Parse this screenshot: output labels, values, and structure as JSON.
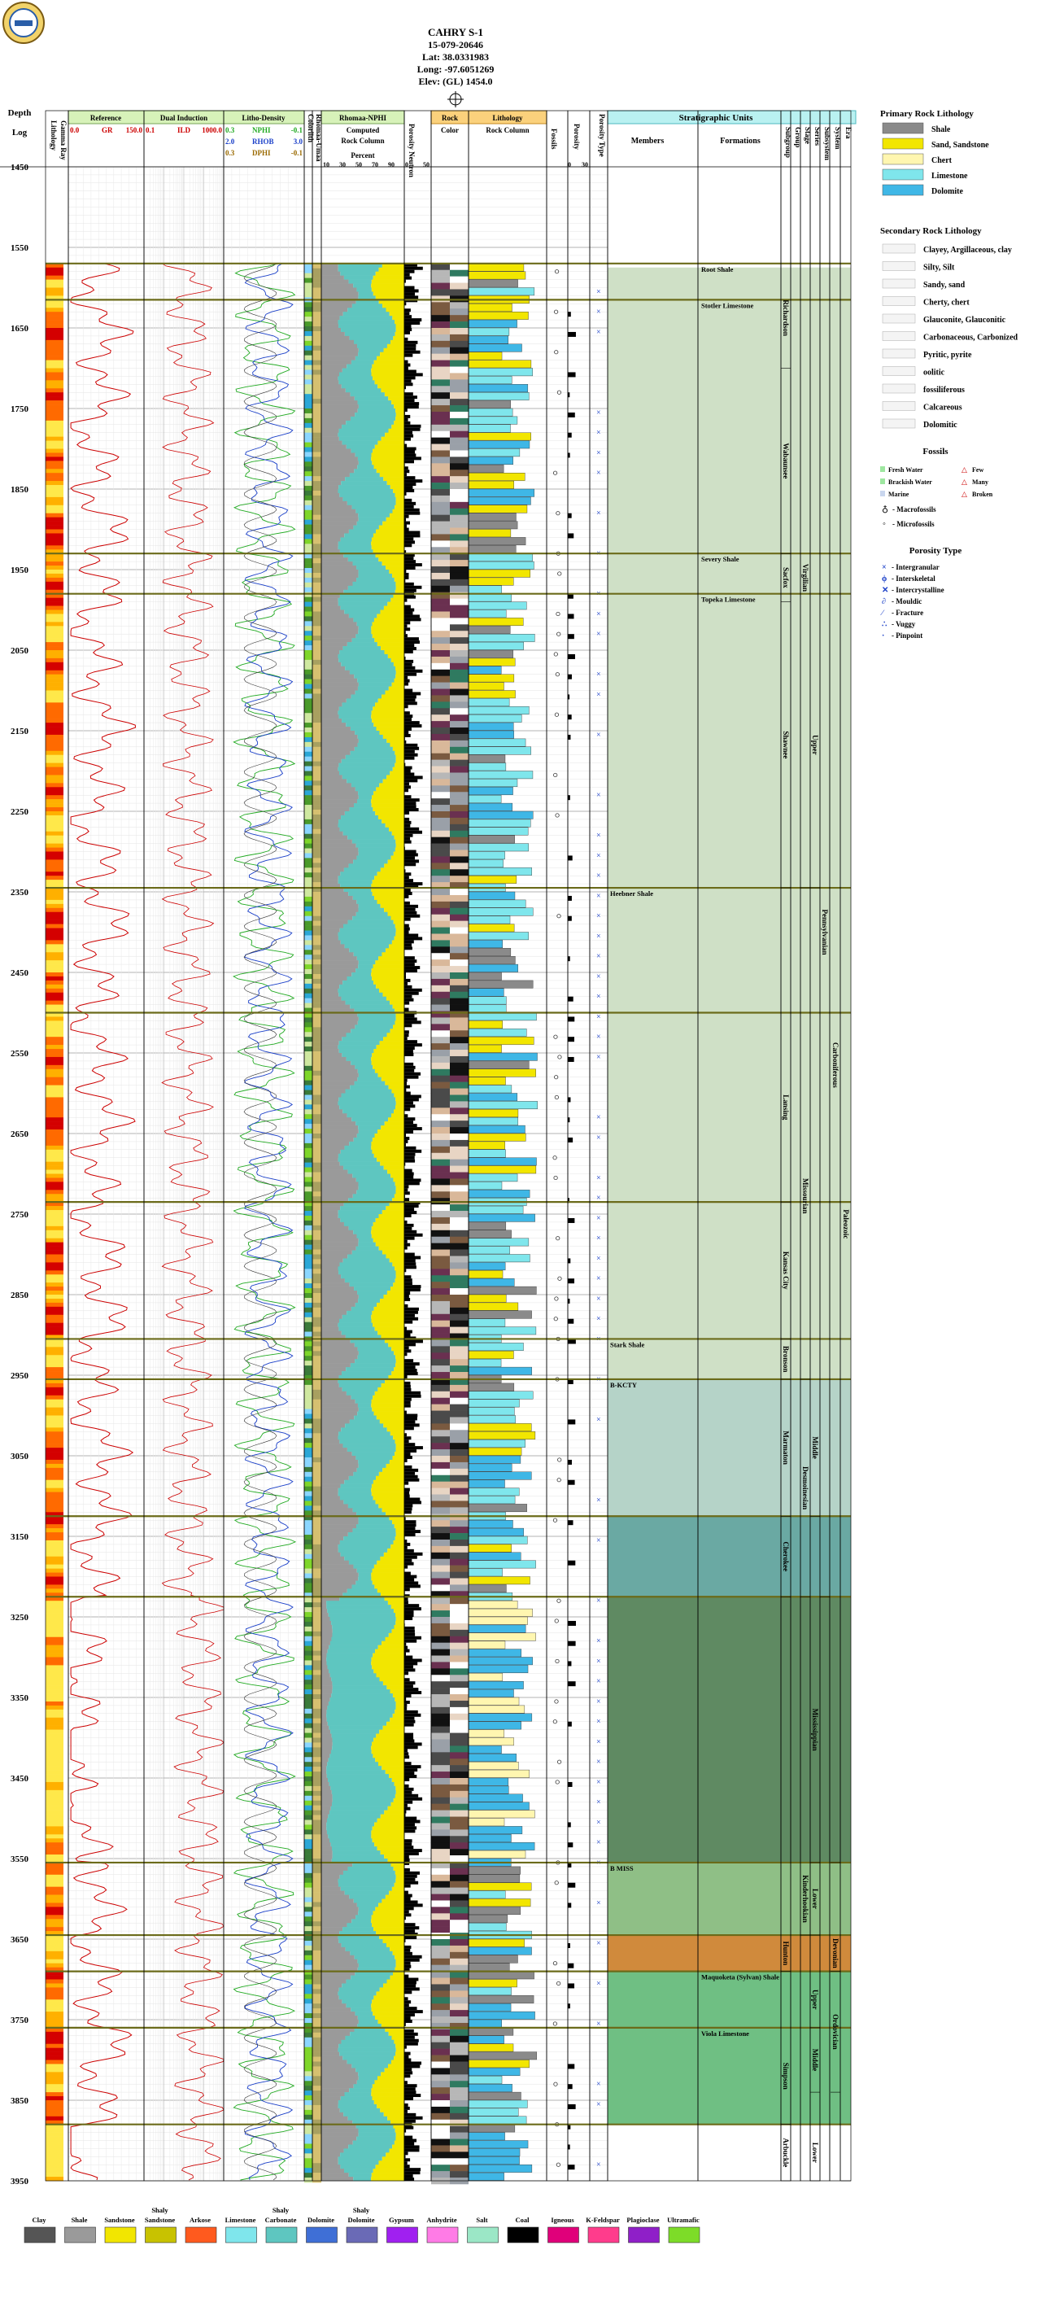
{
  "header": {
    "well_name": "CAHRY S-1",
    "api": "15-079-20646",
    "lat": "Lat: 38.0331983",
    "long": "Long: -97.6051269",
    "elev": "Elev: (GL) 1454.0"
  },
  "columns": {
    "depth": "Depth",
    "log": "Log",
    "lithology_from_gr": "Lithology",
    "gamma_ray": "Gamma Ray",
    "reference": "Reference",
    "gr_label": "GR",
    "gr_min": "0.0",
    "gr_max": "150.0",
    "dual_induction": "Dual Induction",
    "ild_label": "ILD",
    "ild_min": "0.1",
    "ild_max": "1000.0",
    "litho_density": "Litho-Density",
    "nphi": "NPHI",
    "nphi_left": "0.3",
    "nphi_right": "-0.1",
    "rhob": "RHOB",
    "rhob_left": "2.0",
    "rhob_right": "3.0",
    "dphi": "DPHI",
    "dphi_left": "0.3",
    "dphi_right": "-0.1",
    "colorlith": "Colorlith",
    "rhomaa_umaa": "Rhomaa-Umaa",
    "rhomaa_nphi": "Rhomaa-NPHI",
    "computed": "Computed",
    "rock_column": "Rock Column",
    "percent": "Percent",
    "pct_ticks": [
      "10",
      "30",
      "50",
      "70",
      "90"
    ],
    "porosity_neutron": "Porosity Neutron",
    "por_ticks": [
      "0",
      "50"
    ],
    "rock": "Rock",
    "color": "Color",
    "lithology": "Lithology",
    "lith_rock_column": "Rock Column",
    "fossils": "Fossils",
    "porosity": "Porosity",
    "por2_ticks": [
      "0",
      "30"
    ],
    "porosity_type": "Porosity Type",
    "stratigraphic_units": "Stratigraphic Units",
    "members": "Members",
    "formations": "Formations",
    "subgroup": "Subgroup",
    "group": "Group",
    "stage": "Stage",
    "series": "Series",
    "subsystem": "Subsystem",
    "system": "System",
    "era": "Era"
  },
  "chart_data": {
    "type": "table",
    "depth_range": [
      1450,
      3950
    ],
    "depth_ticks": [
      1450,
      1550,
      1650,
      1750,
      1850,
      1950,
      2050,
      2150,
      2250,
      2350,
      2450,
      2550,
      2650,
      2750,
      2850,
      2950,
      3050,
      3150,
      3250,
      3350,
      3450,
      3550,
      3650,
      3750,
      3850,
      3950
    ],
    "tops": [
      {
        "name": "Root Shale",
        "depth": 1570,
        "column": "formation"
      },
      {
        "name": "Stotler Limestone",
        "depth": 1615,
        "column": "formation"
      },
      {
        "name": "Severy Shale",
        "depth": 1930,
        "column": "formation"
      },
      {
        "name": "Topeka Limestone",
        "depth": 1980,
        "column": "formation"
      },
      {
        "name": "Heebner Shale",
        "depth": 2345,
        "column": "member"
      },
      {
        "name": "",
        "depth": 2500,
        "column": "none"
      },
      {
        "name": "",
        "depth": 2735,
        "column": "none"
      },
      {
        "name": "Stark Shale",
        "depth": 2905,
        "column": "member"
      },
      {
        "name": "B-KCTY",
        "depth": 2955,
        "column": "member"
      },
      {
        "name": "",
        "depth": 3125,
        "column": "none"
      },
      {
        "name": "",
        "depth": 3225,
        "column": "none"
      },
      {
        "name": "B MISS",
        "depth": 3555,
        "column": "member"
      },
      {
        "name": "",
        "depth": 3645,
        "column": "none"
      },
      {
        "name": "Maquoketa (Sylvan) Shale",
        "depth": 3690,
        "column": "formation"
      },
      {
        "name": "Viola Limestone",
        "depth": 3760,
        "column": "formation"
      },
      {
        "name": "",
        "depth": 3880,
        "column": "none"
      }
    ],
    "strat_bands": [
      {
        "from": 1575,
        "to": 2955,
        "color": "#cfe0c6"
      },
      {
        "from": 2955,
        "to": 3125,
        "color": "#b5d3c8"
      },
      {
        "from": 3125,
        "to": 3225,
        "color": "#6aa9a3"
      },
      {
        "from": 3225,
        "to": 3555,
        "color": "#5f8a62"
      },
      {
        "from": 3555,
        "to": 3645,
        "color": "#8fbf86"
      },
      {
        "from": 3645,
        "to": 3690,
        "color": "#d08a3c"
      },
      {
        "from": 3690,
        "to": 3880,
        "color": "#6fbf83"
      }
    ],
    "units": {
      "subgroup": [
        {
          "name": "Richardson",
          "from": 1575,
          "to": 1700
        },
        {
          "name": "Wabaunsee",
          "from": 1700,
          "to": 1930
        },
        {
          "name": "Sacfox",
          "from": 1930,
          "to": 1990
        },
        {
          "name": "Shawnee",
          "from": 1990,
          "to": 2345
        },
        {
          "name": "Lansing",
          "from": 2500,
          "to": 2735
        },
        {
          "name": "Kansas City",
          "from": 2735,
          "to": 2905
        },
        {
          "name": "Bronson",
          "from": 2905,
          "to": 2955
        },
        {
          "name": "Marmaton",
          "from": 2955,
          "to": 3125
        },
        {
          "name": "Cherokee",
          "from": 3125,
          "to": 3225
        },
        {
          "name": "Hunton",
          "from": 3645,
          "to": 3690
        },
        {
          "name": "Simpson",
          "from": 3760,
          "to": 3880
        },
        {
          "name": "Arbuckle",
          "from": 3880,
          "to": 3950
        }
      ],
      "stage": [
        {
          "name": "Virgilian",
          "from": 1575,
          "to": 2345
        },
        {
          "name": "Missourian",
          "from": 2500,
          "to": 2955
        },
        {
          "name": "Desmoinesian",
          "from": 2955,
          "to": 3225
        },
        {
          "name": "Kinderhookian",
          "from": 3555,
          "to": 3645
        }
      ],
      "series": [
        {
          "name": "Upper",
          "from": 1990,
          "to": 2345
        },
        {
          "name": "Middle",
          "from": 2955,
          "to": 3125
        },
        {
          "name": "Mississippian",
          "from": 3225,
          "to": 3555
        },
        {
          "name": "Lower",
          "from": 3555,
          "to": 3645
        },
        {
          "name": "Upper",
          "from": 3690,
          "to": 3760
        },
        {
          "name": "Middle",
          "from": 3760,
          "to": 3840
        },
        {
          "name": "Lower",
          "from": 3880,
          "to": 3950
        }
      ],
      "subsystem": [
        {
          "name": "Pennsylvanian",
          "from": 1575,
          "to": 3225
        }
      ],
      "system": [
        {
          "name": "Carboniferous",
          "from": 1575,
          "to": 3555
        },
        {
          "name": "Devonian",
          "from": 3645,
          "to": 3690
        },
        {
          "name": "Ordovician",
          "from": 3690,
          "to": 3840
        }
      ],
      "era": [
        {
          "name": "Paleozoic",
          "from": 1575,
          "to": 3950
        }
      ]
    }
  },
  "legend": {
    "primary_title": "Primary Rock Lithology",
    "primary": [
      {
        "label": "Shale",
        "color": "#8a8a8a"
      },
      {
        "label": "Sand, Sandstone",
        "color": "#f2e600"
      },
      {
        "label": "Chert",
        "color": "#fff6b0"
      },
      {
        "label": "Limestone",
        "color": "#7fe6ec"
      },
      {
        "label": "Dolomite",
        "color": "#3fb7e6"
      }
    ],
    "secondary_title": "Secondary Rock Lithology",
    "secondary": [
      {
        "label": "Clayey, Argillaceous, clay"
      },
      {
        "label": "Silty, Silt"
      },
      {
        "label": "Sandy, sand"
      },
      {
        "label": "Cherty, chert"
      },
      {
        "label": "Glauconite, Glauconitic"
      },
      {
        "label": "Carbonaceous, Carbonized"
      },
      {
        "label": "Pyritic, pyrite"
      },
      {
        "label": "oolitic"
      },
      {
        "label": "fossiliferous"
      },
      {
        "label": "Calcareous"
      },
      {
        "label": "Dolomitic"
      }
    ],
    "fossils_title": "Fossils",
    "fossils": [
      {
        "label": "Fresh Water",
        "color": "#9ee7a0"
      },
      {
        "label": "Brackish Water",
        "color": "#9ee7a0"
      },
      {
        "label": "Marine",
        "color": "#c9d6ee"
      }
    ],
    "abundance": [
      "Few",
      "Many",
      "Broken"
    ],
    "macro": "- Macrofossils",
    "micro": "- Microfossils",
    "porosity_title": "Porosity Type",
    "porosity_types": [
      "- Intergranular",
      "- Interskeletal",
      "- Intercrystalline",
      "- Mouldic",
      "- Fracture",
      "- Vuggy",
      "- Pinpoint"
    ]
  },
  "bottom_legend": [
    {
      "label": "Clay",
      "label2": "",
      "color": "#555555"
    },
    {
      "label": "Shale",
      "label2": "",
      "color": "#9a9a9a"
    },
    {
      "label": "Sandstone",
      "label2": "",
      "color": "#f2e600"
    },
    {
      "label": "Sandstone",
      "label2": "Shaly",
      "color": "#c8c200"
    },
    {
      "label": "Arkose",
      "label2": "",
      "color": "#ff5a1e"
    },
    {
      "label": "Limestone",
      "label2": "",
      "color": "#7fe6ec"
    },
    {
      "label": "Carbonate",
      "label2": "Shaly",
      "color": "#5ec6c0"
    },
    {
      "label": "Dolomite",
      "label2": "",
      "color": "#3f6fd6"
    },
    {
      "label": "Dolomite",
      "label2": "Shaly",
      "color": "#6a6ab6"
    },
    {
      "label": "Gypsum",
      "label2": "",
      "color": "#a020f0"
    },
    {
      "label": "Anhydrite",
      "label2": "",
      "color": "#ff7be6"
    },
    {
      "label": "Salt",
      "label2": "",
      "color": "#9be7c6"
    },
    {
      "label": "Coal",
      "label2": "",
      "color": "#000000"
    },
    {
      "label": "Igneous",
      "label2": "",
      "color": "#e0007a"
    },
    {
      "label": "K-Feldspar",
      "label2": "",
      "color": "#ff3c8c"
    },
    {
      "label": "Plagioclase",
      "label2": "",
      "color": "#8f1fc8"
    },
    {
      "label": "Ultramafic",
      "label2": "",
      "color": "#7ddc28"
    }
  ]
}
